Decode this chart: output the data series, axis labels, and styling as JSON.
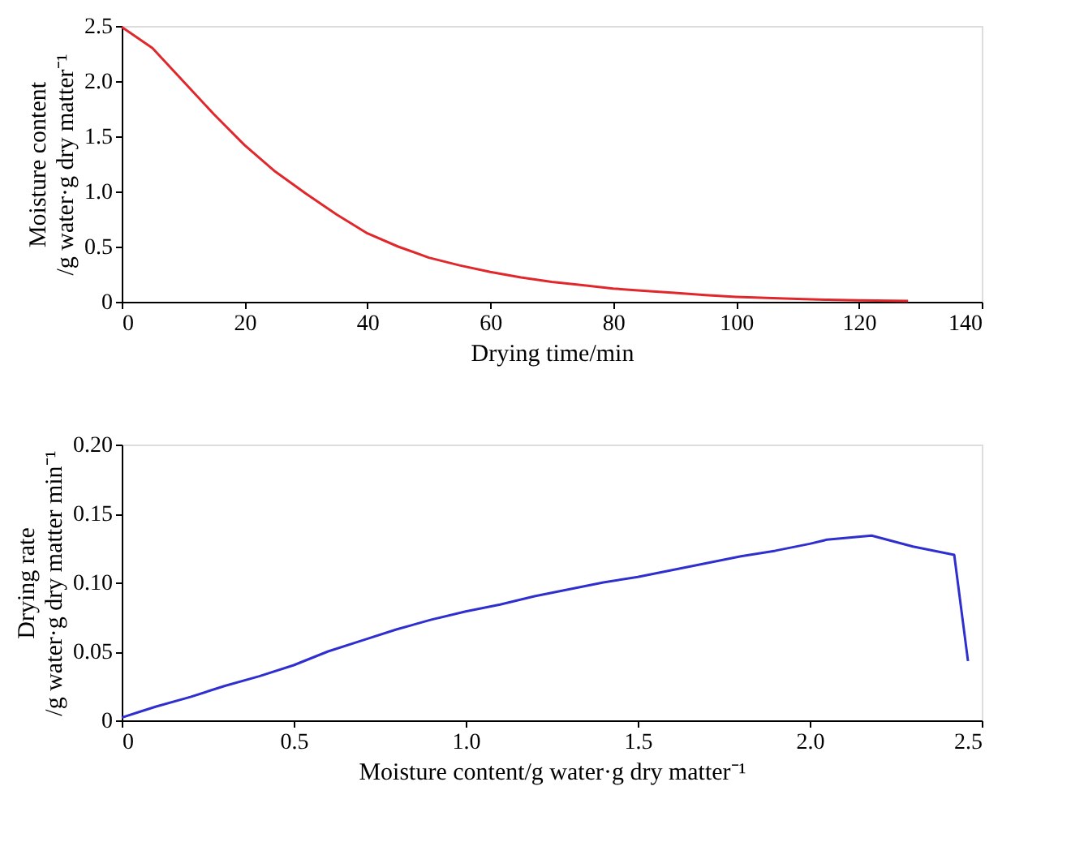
{
  "chart_data": [
    {
      "type": "line",
      "xlabel": "Drying time/min",
      "ylabel": [
        "Moisture content",
        "/g water·g dry matter⁻¹"
      ],
      "xlim": [
        0,
        140
      ],
      "ylim": [
        0,
        2.5
      ],
      "xticks": [
        0,
        20,
        40,
        60,
        80,
        100,
        120,
        140
      ],
      "yticks": [
        0,
        0.5,
        {
          "value": 1,
          "label": "1.0"
        },
        1.5,
        {
          "value": 2,
          "label": "2.0"
        },
        2.5
      ],
      "grid": false,
      "marker": "none",
      "line_style": "solid",
      "series": [
        {
          "color": "#e0282c",
          "x": [
            0,
            5,
            10,
            15,
            20,
            25,
            30,
            35,
            40,
            45,
            50,
            55,
            60,
            65,
            70,
            75,
            80,
            85,
            90,
            95,
            100,
            105,
            110,
            115,
            120,
            128
          ],
          "values": [
            2.49,
            2.3,
            2.0,
            1.7,
            1.42,
            1.18,
            0.98,
            0.79,
            0.62,
            0.5,
            0.4,
            0.33,
            0.27,
            0.22,
            0.18,
            0.15,
            0.12,
            0.1,
            0.08,
            0.06,
            0.045,
            0.035,
            0.025,
            0.018,
            0.012,
            0.008
          ]
        }
      ]
    },
    {
      "type": "line",
      "xlabel": "Moisture content/g water·g dry matter⁻¹",
      "ylabel": [
        "Drying rate",
        "/g water·g dry matter min⁻¹"
      ],
      "xlim": [
        0,
        2.5
      ],
      "ylim": [
        0,
        0.2
      ],
      "xticks": [
        0,
        0.5,
        {
          "value": 1,
          "label": "1.0"
        },
        1.5,
        {
          "value": 2,
          "label": "2.0"
        },
        2.5
      ],
      "yticks": [
        0,
        0.05,
        {
          "value": 0.1,
          "label": "0.10"
        },
        0.15,
        {
          "value": 0.2,
          "label": "0.20"
        }
      ],
      "grid": false,
      "marker": "none",
      "line_style": "solid",
      "series": [
        {
          "color": "#2f2fd0",
          "x": [
            0,
            0.05,
            0.1,
            0.2,
            0.3,
            0.4,
            0.5,
            0.6,
            0.7,
            0.8,
            0.9,
            1.0,
            1.1,
            1.2,
            1.3,
            1.4,
            1.5,
            1.6,
            1.7,
            1.8,
            1.9,
            2.0,
            2.05,
            2.18,
            2.3,
            2.42,
            2.46
          ],
          "values": [
            0.002,
            0.006,
            0.01,
            0.017,
            0.025,
            0.032,
            0.04,
            0.05,
            0.058,
            0.066,
            0.073,
            0.079,
            0.084,
            0.09,
            0.095,
            0.1,
            0.104,
            0.109,
            0.114,
            0.119,
            0.123,
            0.128,
            0.131,
            0.134,
            0.126,
            0.12,
            0.043
          ]
        }
      ]
    }
  ]
}
